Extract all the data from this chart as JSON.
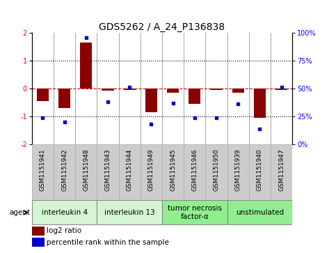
{
  "title": "GDS5262 / A_24_P136838",
  "samples": [
    "GSM1151941",
    "GSM1151942",
    "GSM1151948",
    "GSM1151943",
    "GSM1151944",
    "GSM1151949",
    "GSM1151945",
    "GSM1151946",
    "GSM1151950",
    "GSM1151939",
    "GSM1151940",
    "GSM1151947"
  ],
  "log2_ratio": [
    -0.45,
    -0.7,
    1.65,
    -0.08,
    -0.05,
    -0.85,
    -0.15,
    -0.55,
    -0.05,
    -0.15,
    -1.05,
    -0.05
  ],
  "percentile": [
    24,
    20,
    96,
    38,
    51,
    18,
    37,
    24,
    24,
    36,
    14,
    51
  ],
  "ylim": [
    -2,
    2
  ],
  "y2lim": [
    0,
    100
  ],
  "bar_color": "#8B0000",
  "dot_color": "#0000CD",
  "plot_bg": "#FFFFFF",
  "dotted_line_color": "#000000",
  "zero_line_color": "#CC0000",
  "agent_groups": [
    {
      "label": "interleukin 4",
      "start": 0,
      "end": 3,
      "color": "#d4f5d4"
    },
    {
      "label": "interleukin 13",
      "start": 3,
      "end": 6,
      "color": "#d4f5d4"
    },
    {
      "label": "tumor necrosis\nfactor-α",
      "start": 6,
      "end": 9,
      "color": "#90ee90"
    },
    {
      "label": "unstimulated",
      "start": 9,
      "end": 12,
      "color": "#90ee90"
    }
  ],
  "sample_bg": "#cccccc",
  "xlabel_fontsize": 6.5,
  "title_fontsize": 10,
  "legend_fontsize": 7.5,
  "tick_label_fontsize": 7,
  "agent_label_fontsize": 7.5,
  "bar_width": 0.55
}
